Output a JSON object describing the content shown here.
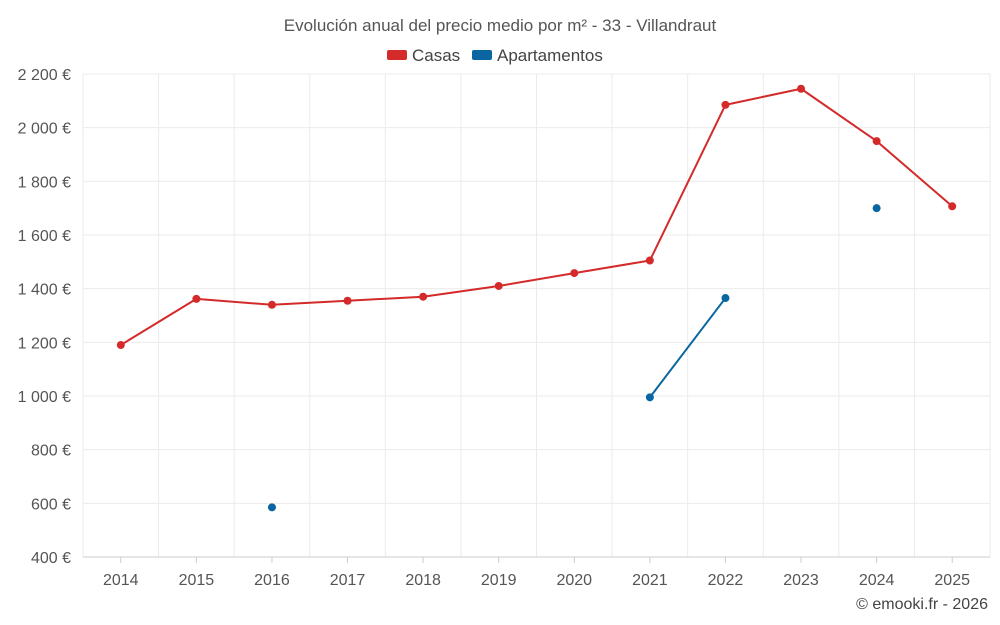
{
  "chart_data": {
    "type": "line",
    "title": "Evolución anual del precio medio por m² - 33 - Villandraut",
    "xlabel": "",
    "ylabel": "",
    "ylim": [
      400,
      2200
    ],
    "y_ticks": [
      400,
      600,
      800,
      1000,
      1200,
      1400,
      1600,
      1800,
      2000,
      2200
    ],
    "y_tick_labels": [
      "400 €",
      "600 €",
      "800 €",
      "1 000 €",
      "1 200 €",
      "1 400 €",
      "1 600 €",
      "1 800 €",
      "2 000 €",
      "2 200 €"
    ],
    "categories": [
      "2014",
      "2015",
      "2016",
      "2017",
      "2018",
      "2019",
      "2020",
      "2021",
      "2022",
      "2023",
      "2024",
      "2025"
    ],
    "series": [
      {
        "name": "Casas",
        "color": "#d42a2a",
        "values": [
          1190,
          1362,
          1340,
          1355,
          1370,
          1410,
          1458,
          1505,
          2085,
          2145,
          1950,
          1707
        ]
      },
      {
        "name": "Apartamentos",
        "color": "#0a66a0",
        "values": [
          null,
          null,
          585,
          null,
          null,
          null,
          null,
          995,
          1365,
          null,
          1700,
          null
        ]
      }
    ],
    "grid": true,
    "legend_position": "top-center"
  },
  "credit": "© emooki.fr - 2026"
}
